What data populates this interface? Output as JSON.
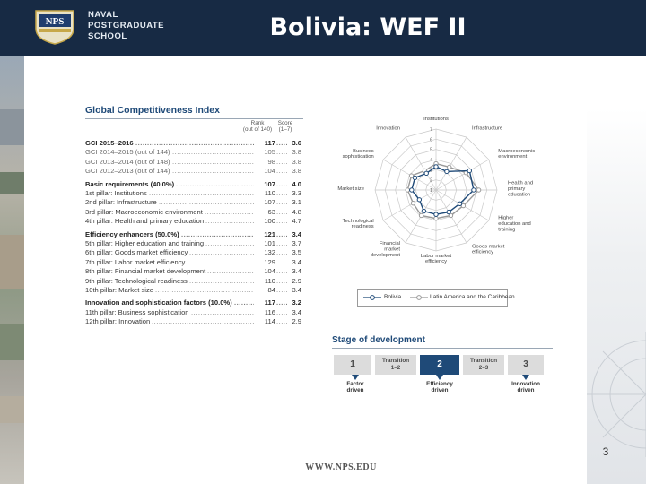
{
  "header": {
    "logo_lines": [
      "NAVAL",
      "POSTGRADUATE",
      "SCHOOL"
    ],
    "crest_letters": "NPS",
    "title": "Bolivia: WEF II"
  },
  "gci": {
    "title": "Global Competitiveness Index",
    "rank_header": "Rank\n(out of 140)",
    "score_header": "Score\n(1–7)",
    "rows": [
      {
        "label": "GCI 2015–2016",
        "rank": "117",
        "score": "3.6",
        "style": "bold"
      },
      {
        "label": "GCI 2014–2015 (out of 144)",
        "rank": "105",
        "score": "3.8",
        "style": "gray"
      },
      {
        "label": "GCI 2013–2014 (out of 148)",
        "rank": "98",
        "score": "3.8",
        "style": "gray"
      },
      {
        "label": "GCI 2012–2013 (out of 144)",
        "rank": "104",
        "score": "3.8",
        "style": "gray"
      },
      {
        "label": "Basic requirements (40.0%)",
        "rank": "107",
        "score": "4.0",
        "style": "bold"
      },
      {
        "label": "1st pillar: Institutions",
        "rank": "110",
        "score": "3.3",
        "style": "normal"
      },
      {
        "label": "2nd pillar: Infrastructure",
        "rank": "107",
        "score": "3.1",
        "style": "normal"
      },
      {
        "label": "3rd pillar: Macroeconomic environment",
        "rank": "63",
        "score": "4.8",
        "style": "normal"
      },
      {
        "label": "4th pillar: Health and primary education",
        "rank": "100",
        "score": "4.7",
        "style": "normal"
      },
      {
        "label": "Efficiency enhancers (50.0%)",
        "rank": "121",
        "score": "3.4",
        "style": "bold"
      },
      {
        "label": "5th pillar: Higher education and training",
        "rank": "101",
        "score": "3.7",
        "style": "normal"
      },
      {
        "label": "6th pillar: Goods market efficiency",
        "rank": "132",
        "score": "3.5",
        "style": "normal"
      },
      {
        "label": "7th pillar: Labor market efficiency",
        "rank": "129",
        "score": "3.4",
        "style": "normal"
      },
      {
        "label": "8th pillar: Financial market development",
        "rank": "104",
        "score": "3.4",
        "style": "normal"
      },
      {
        "label": "9th pillar: Technological readiness",
        "rank": "110",
        "score": "2.9",
        "style": "normal"
      },
      {
        "label": "10th pillar: Market size",
        "rank": "84",
        "score": "3.4",
        "style": "normal"
      },
      {
        "label": "Innovation and sophistication factors (10.0%)",
        "rank": "117",
        "score": "3.2",
        "style": "bold"
      },
      {
        "label": "11th pillar: Business sophistication",
        "rank": "116",
        "score": "3.4",
        "style": "normal"
      },
      {
        "label": "12th pillar: Innovation",
        "rank": "114",
        "score": "2.9",
        "style": "normal"
      }
    ]
  },
  "chart_data": {
    "type": "radar",
    "axes": [
      "Institutions",
      "Infrastructure",
      "Macroeconomic environment",
      "Health and primary education",
      "Higher education and training",
      "Goods market efficiency",
      "Labor market efficiency",
      "Financial market development",
      "Technological readiness",
      "Market size",
      "Business sophistication",
      "Innovation"
    ],
    "ticks": [
      1,
      2,
      3,
      4,
      5,
      6,
      7
    ],
    "range": [
      1,
      7
    ],
    "series": [
      {
        "name": "Bolivia",
        "values": [
          3.3,
          3.1,
          4.8,
          4.7,
          3.7,
          3.5,
          3.4,
          3.4,
          2.9,
          3.4,
          3.4,
          2.9
        ],
        "color": "#1f4a78"
      },
      {
        "name": "Latin America and the Caribbean",
        "values": [
          3.6,
          3.6,
          4.4,
          5.2,
          4.1,
          3.9,
          3.8,
          3.9,
          3.6,
          3.8,
          3.8,
          3.2
        ],
        "color": "#999999"
      }
    ],
    "legend_position": "bottom"
  },
  "stage": {
    "title": "Stage of development",
    "boxes": [
      {
        "text": "1",
        "kind": "num",
        "active": false
      },
      {
        "text": "Transition\n1–2",
        "kind": "tr",
        "active": false
      },
      {
        "text": "2",
        "kind": "num",
        "active": true
      },
      {
        "text": "Transition\n2–3",
        "kind": "tr",
        "active": false
      },
      {
        "text": "3",
        "kind": "num",
        "active": false
      }
    ],
    "labels": [
      "Factor\ndriven",
      "Efficiency\ndriven",
      "Innovation\ndriven"
    ]
  },
  "page_number": "3",
  "footer": "WWW.NPS.EDU",
  "colors": {
    "navy": "#172a44",
    "accent": "#1f4a78"
  }
}
